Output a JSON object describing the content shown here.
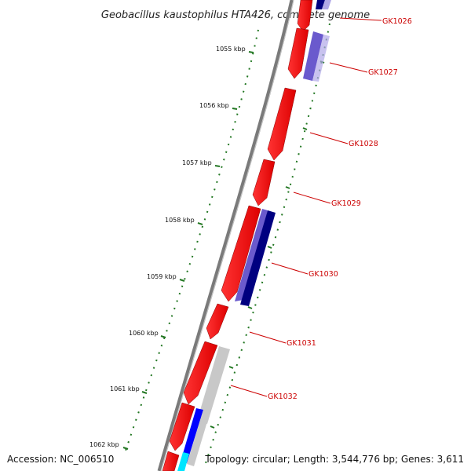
{
  "title": "Geobacillus kaustophilus HTA426, complete genome",
  "footer": {
    "accession": "Accession: NC_006510",
    "summary": "Topology: circular; Length: 3,544,776 bp; Genes: 3,611"
  },
  "kbp_labels": [
    "1055 kbp",
    "1056 kbp",
    "1057 kbp",
    "1058 kbp",
    "1059 kbp",
    "1060 kbp",
    "1061 kbp",
    "1062 kbp"
  ],
  "gene_labels": [
    "GK1026",
    "GK1027",
    "GK1028",
    "GK1029",
    "GK1030",
    "GK1031",
    "GK1032"
  ],
  "colors": {
    "forward_cds": "#ff0000",
    "reverse_dark": "#000080",
    "reverse_mid": "#6a5acd",
    "reverse_light": "#b0a8e8",
    "reverse_blue": "#0000ff",
    "gray_gene": "#c8c8c8",
    "cyan_gene": "#00e5ff",
    "backbone": "#777777",
    "tick_green": "#227722",
    "label_red": "#cc0000"
  }
}
